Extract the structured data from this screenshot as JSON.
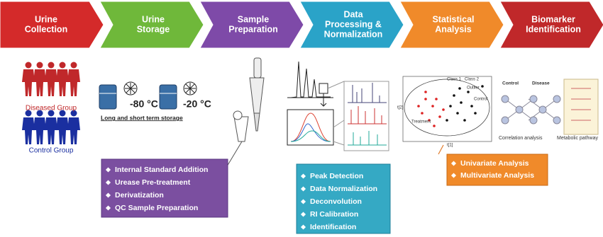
{
  "steps": [
    {
      "lines": [
        "Urine",
        "Collection"
      ],
      "color": "#d42a2a"
    },
    {
      "lines": [
        "Urine",
        "Storage"
      ],
      "color": "#6fb83a"
    },
    {
      "lines": [
        "Sample",
        "Preparation"
      ],
      "color": "#7e4aa8"
    },
    {
      "lines": [
        "Data",
        "Processing &",
        "Normalization"
      ],
      "color": "#2aa3c8"
    },
    {
      "lines": [
        "Statistical",
        "Analysis"
      ],
      "color": "#f08a2a"
    },
    {
      "lines": [
        "Biomarker",
        "Identification"
      ],
      "color": "#c0282a"
    }
  ],
  "groups": {
    "diseased": "Diseased Group",
    "control": "Control Group"
  },
  "storage": {
    "temp1": "-80 °C",
    "temp2": "-20 °C",
    "caption": "Long and short term storage"
  },
  "preparation": {
    "items": [
      "Internal Standard Addition",
      "Urease Pre-treatment",
      "Derivatization",
      "QC Sample Preparation"
    ]
  },
  "processing": {
    "items": [
      "Peak Detection",
      "Data Normalization",
      "Deconvolution",
      "RI Calibration",
      "Identification"
    ]
  },
  "statistics": {
    "items": [
      "Univariate Analysis",
      "Multivariate Analysis"
    ],
    "plot": {
      "legend1": "Class 1",
      "legend2": "Class 2",
      "outlier": "Outlier",
      "control": "Control",
      "treatment": "Treatment",
      "xlabel": "t[1]",
      "ylabel": "t[2]"
    }
  },
  "biomarker": {
    "control": "Control",
    "disease": "Disease",
    "correlation": "Correlation analysis",
    "pathway": "Metabolic pathway"
  }
}
